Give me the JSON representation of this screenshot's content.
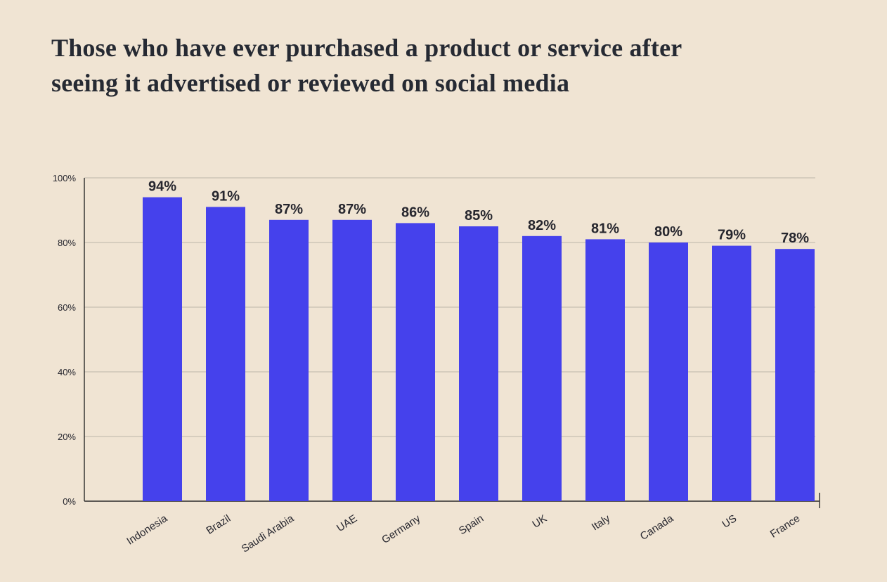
{
  "page": {
    "background_color": "#f0e4d3"
  },
  "chart_data": {
    "type": "bar",
    "title": "Those who have ever purchased a product or service after seeing it advertised or reviewed on social media",
    "title_lines": [
      "Those who have ever purchased a product or service after",
      "seeing it advertised or reviewed on social media"
    ],
    "categories": [
      "Indonesia",
      "Brazil",
      "Saudi Arabia",
      "UAE",
      "Germany",
      "Spain",
      "UK",
      "Italy",
      "Canada",
      "US",
      "France"
    ],
    "values": [
      94,
      91,
      87,
      87,
      86,
      85,
      82,
      81,
      80,
      79,
      78
    ],
    "value_labels": [
      "94%",
      "91%",
      "87%",
      "87%",
      "86%",
      "85%",
      "82%",
      "81%",
      "80%",
      "79%",
      "78%"
    ],
    "xlabel": "",
    "ylabel": "",
    "ylim": [
      0,
      100
    ],
    "yticks": [
      0,
      20,
      40,
      60,
      80,
      100
    ],
    "ytick_labels": [
      "0%",
      "20%",
      "40%",
      "60%",
      "80%",
      "100%"
    ],
    "grid": true,
    "legend": false,
    "bar_color": "#4541ec",
    "value_label_color": "#26262e",
    "axis_text_color": "#26262e",
    "axis_line_color": "#2a2a2a",
    "grid_color": "#bdb6a8"
  }
}
